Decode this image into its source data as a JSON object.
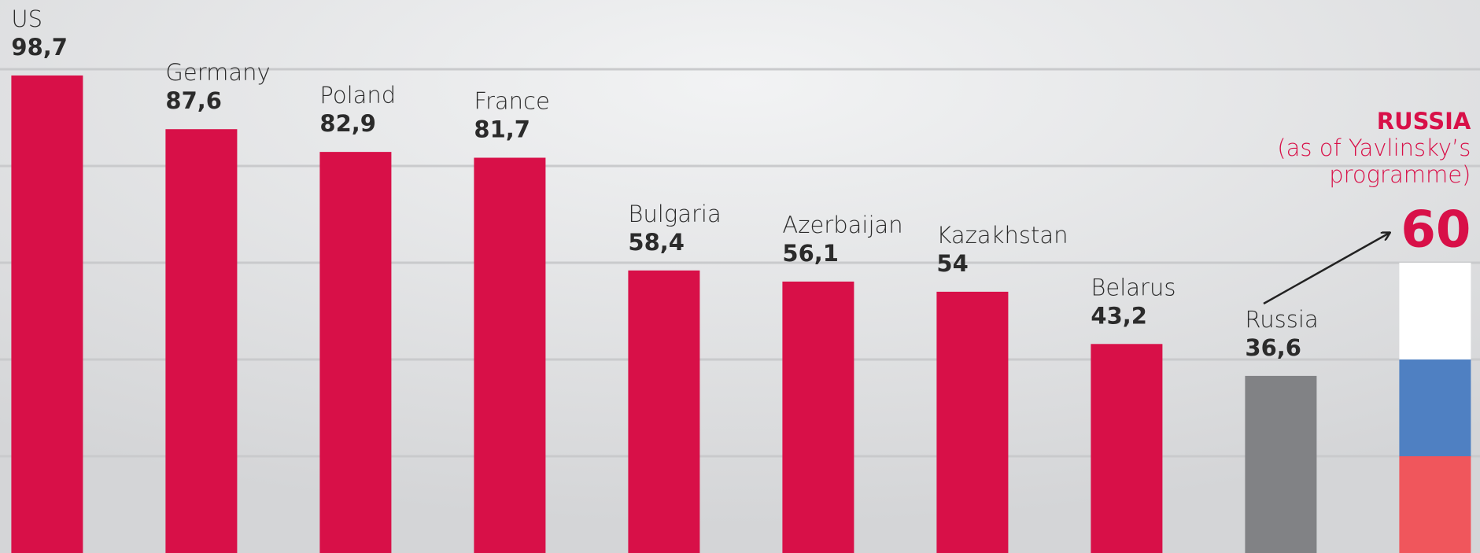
{
  "chart_data": {
    "type": "bar",
    "categories": [
      "US",
      "Germany",
      "Poland",
      "France",
      "Bulgaria",
      "Azerbaijan",
      "Kazakhstan",
      "Belarus",
      "Russia",
      "RUSSIA"
    ],
    "values": [
      98.7,
      87.6,
      82.9,
      81.7,
      58.4,
      56.1,
      54,
      43.2,
      36.6,
      60
    ],
    "value_labels": [
      "98,7",
      "87,6",
      "82,9",
      "81,7",
      "58,4",
      "56,1",
      "54",
      "43,2",
      "36,6",
      "60"
    ],
    "colors": [
      "#d81048",
      "#d81048",
      "#d81048",
      "#d81048",
      "#d81048",
      "#d81048",
      "#d81048",
      "#d81048",
      "#818285",
      null
    ],
    "flag_colors": [
      "#ffffff",
      "#4f80c2",
      "#f0565c"
    ],
    "annotation_lines": [
      "(as of Yavlinsky’s",
      "programme)"
    ],
    "accent_color": "#d81048",
    "ylim": [
      0,
      114.3
    ],
    "yticks": [
      20,
      40,
      60,
      80,
      100
    ],
    "grid": true
  }
}
